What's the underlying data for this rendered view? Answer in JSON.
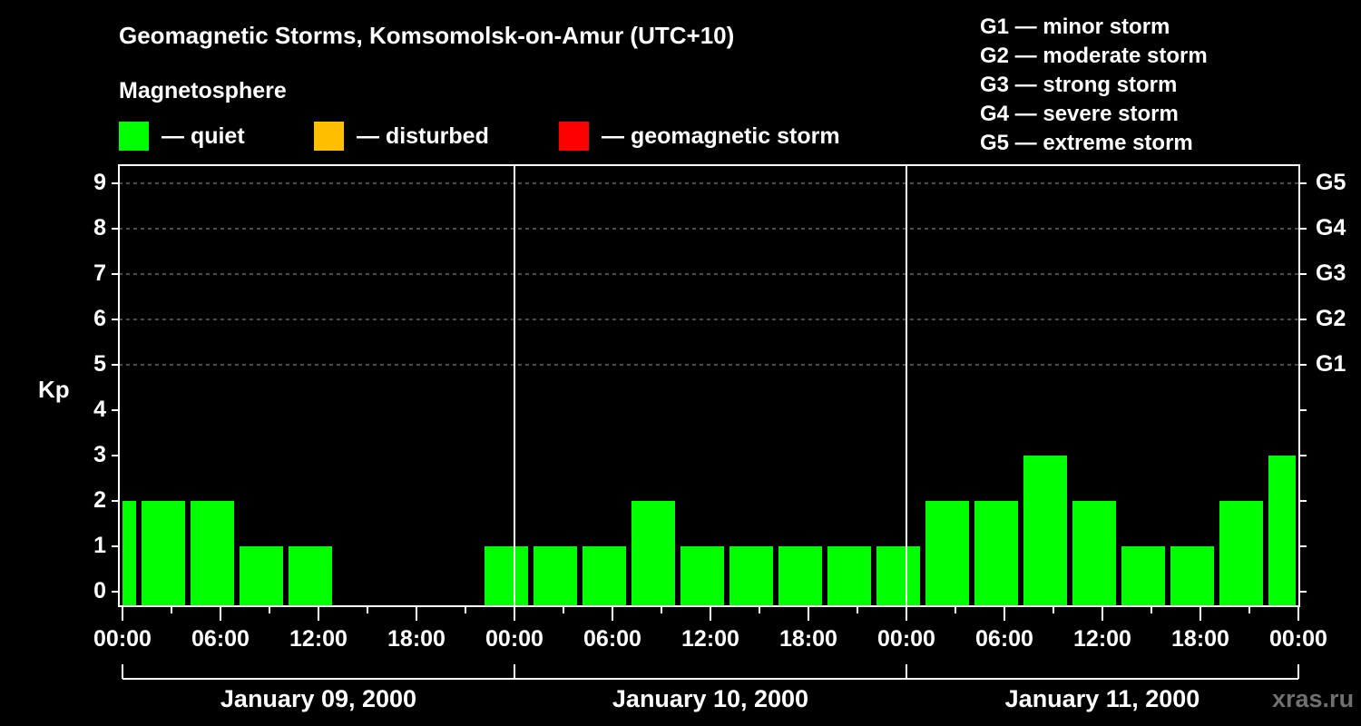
{
  "header": {
    "title": "Geomagnetic Storms, Komsomolsk-on-Amur (UTC+10)",
    "subtitle": "Magnetosphere"
  },
  "legend": [
    {
      "label": "— quiet",
      "color": "#00ff00"
    },
    {
      "label": "— disturbed",
      "color": "#ffbf00"
    },
    {
      "label": "— geomagnetic storm",
      "color": "#ff0000"
    }
  ],
  "g_scale_legend": [
    "G1 — minor storm",
    "G2 — moderate storm",
    "G3 — strong storm",
    "G4 — severe storm",
    "G5 — extreme storm"
  ],
  "axes": {
    "ylabel": "Kp",
    "yticks": [
      "0",
      "1",
      "2",
      "3",
      "4",
      "5",
      "6",
      "7",
      "8",
      "9"
    ],
    "right_ticks": [
      {
        "kp": 5,
        "label": "G1"
      },
      {
        "kp": 6,
        "label": "G2"
      },
      {
        "kp": 7,
        "label": "G3"
      },
      {
        "kp": 8,
        "label": "G4"
      },
      {
        "kp": 9,
        "label": "G5"
      }
    ],
    "xticks": [
      "00:00",
      "06:00",
      "12:00",
      "18:00",
      "00:00",
      "06:00",
      "12:00",
      "18:00",
      "00:00",
      "06:00",
      "12:00",
      "18:00",
      "00:00"
    ],
    "days": [
      "January 09, 2000",
      "January 10, 2000",
      "January 11, 2000"
    ]
  },
  "watermark": "xras.ru",
  "chart_data": {
    "type": "bar",
    "title": "Geomagnetic Storms, Komsomolsk-on-Amur (UTC+10)",
    "subtitle": "Magnetosphere",
    "xlabel": "",
    "ylabel": "Kp",
    "ylim": [
      0,
      9
    ],
    "grid": "dashed horizontal at Kp 5-9",
    "legend": [
      "quiet",
      "disturbed",
      "geomagnetic storm"
    ],
    "bar_interval_hours": 3,
    "first_bar_start_hour": -2,
    "categories": [
      "Jan 09 22:00-01:00",
      "Jan 09 01:00",
      "Jan 09 04:00",
      "Jan 09 07:00",
      "Jan 09 10:00",
      "Jan 09 13:00",
      "Jan 09 16:00",
      "Jan 09 19:00",
      "Jan 09 22:00",
      "Jan 10 01:00",
      "Jan 10 04:00",
      "Jan 10 07:00",
      "Jan 10 10:00",
      "Jan 10 13:00",
      "Jan 10 16:00",
      "Jan 10 19:00",
      "Jan 10 22:00",
      "Jan 11 01:00",
      "Jan 11 04:00",
      "Jan 11 07:00",
      "Jan 11 10:00",
      "Jan 11 13:00",
      "Jan 11 16:00",
      "Jan 11 19:00",
      "Jan 11 22:00"
    ],
    "values": [
      2,
      2,
      2,
      1,
      1,
      null,
      null,
      null,
      1,
      1,
      1,
      2,
      1,
      1,
      1,
      1,
      1,
      2,
      2,
      3,
      2,
      1,
      1,
      2,
      3
    ],
    "colors": "all quiet (#00ff00)"
  }
}
